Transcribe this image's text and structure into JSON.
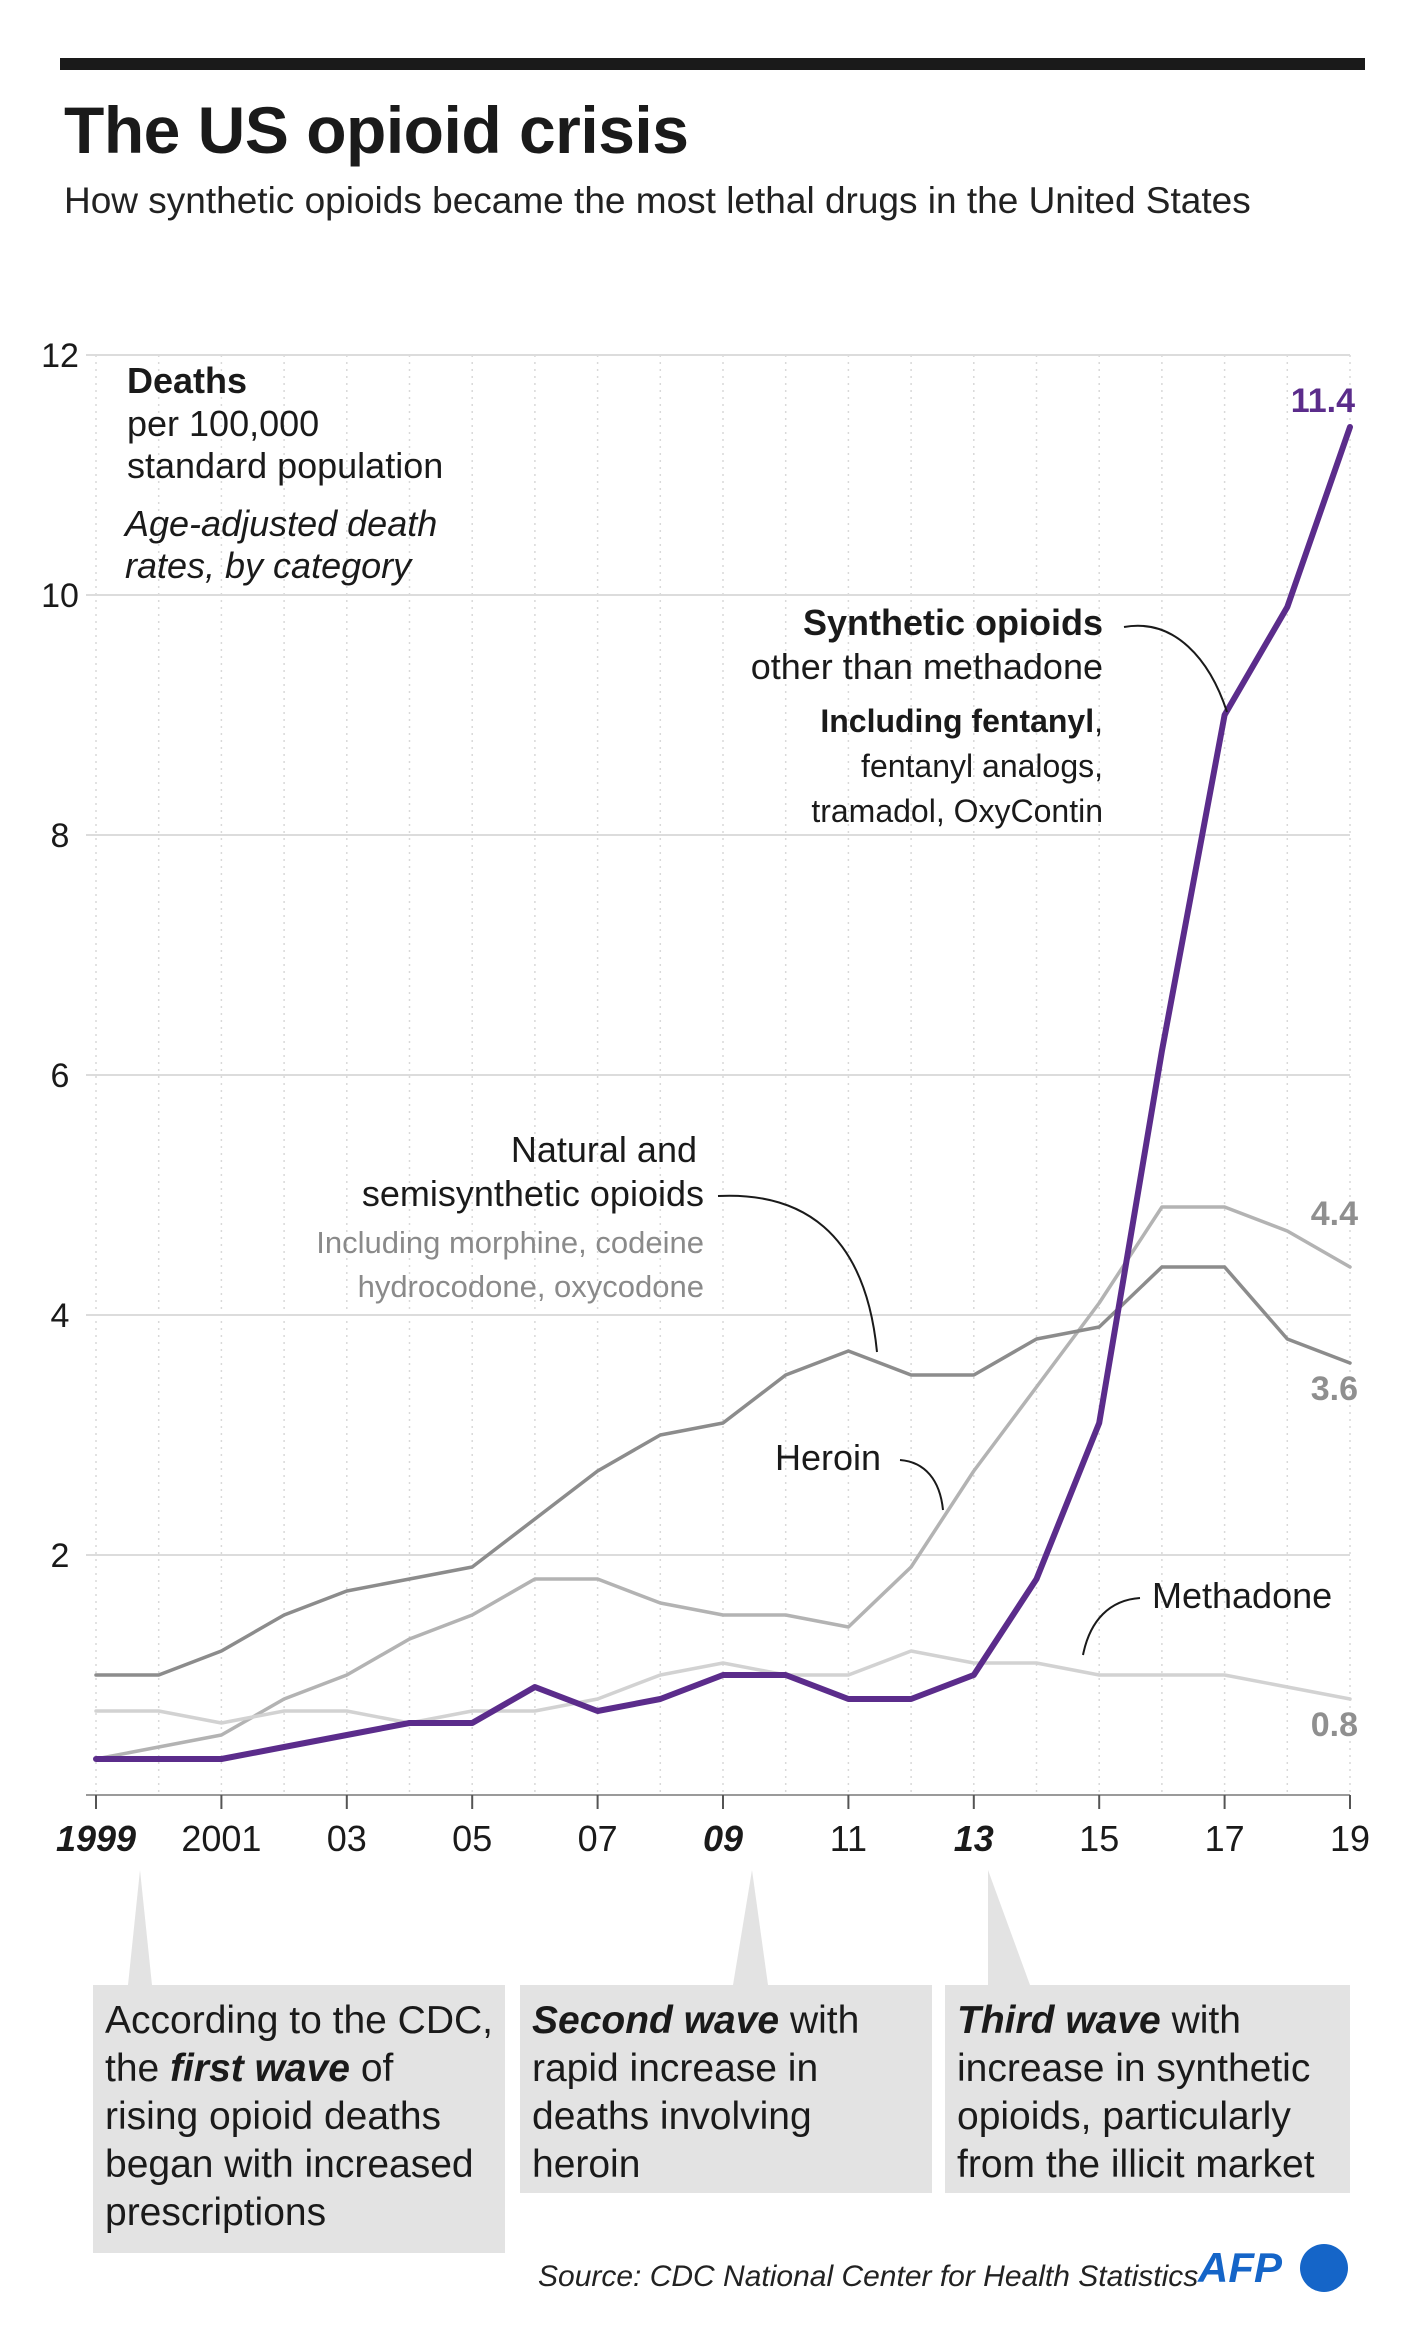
{
  "header": {
    "title": "The US opioid crisis",
    "subtitle": "How synthetic opioids became the most lethal drugs in the United States"
  },
  "chart_data": {
    "type": "line",
    "title": "The US opioid crisis",
    "x": [
      1999,
      2000,
      2001,
      2002,
      2003,
      2004,
      2005,
      2006,
      2007,
      2008,
      2009,
      2010,
      2011,
      2012,
      2013,
      2014,
      2015,
      2016,
      2017,
      2018,
      2019
    ],
    "xlim": [
      1999,
      2019
    ],
    "ylim": [
      0,
      12
    ],
    "yticks": [
      2,
      4,
      6,
      8,
      10,
      12
    ],
    "xtick_values": [
      1999,
      2001,
      2003,
      2005,
      2007,
      2009,
      2011,
      2013,
      2015,
      2017,
      2019
    ],
    "xtick_labels": [
      "1999",
      "2001",
      "03",
      "05",
      "07",
      "09",
      "11",
      "13",
      "15",
      "17",
      "19"
    ],
    "xtick_emphasis": [
      "1999",
      "09",
      "13"
    ],
    "grid": true,
    "ylabel_lines": [
      "Deaths",
      "per 100,000",
      "standard population"
    ],
    "ylabel_note": [
      "Age-adjusted death",
      "rates, by category"
    ],
    "series": [
      {
        "name": "Heroin",
        "color": "#b3b3b3",
        "values": [
          0.3,
          0.4,
          0.5,
          0.8,
          1.0,
          1.3,
          1.5,
          1.8,
          1.8,
          1.6,
          1.5,
          1.5,
          1.4,
          1.9,
          2.7,
          3.4,
          4.1,
          4.9,
          4.9,
          4.7,
          4.4
        ]
      },
      {
        "name": "Methadone",
        "color": "#d2d2d2",
        "values": [
          0.7,
          0.7,
          0.6,
          0.7,
          0.7,
          0.6,
          0.7,
          0.7,
          0.8,
          1.0,
          1.1,
          1.0,
          1.0,
          1.2,
          1.1,
          1.1,
          1.0,
          1.0,
          1.0,
          0.9,
          0.8
        ]
      },
      {
        "name": "Natural and semisynthetic opioids",
        "color": "#8c8c8c",
        "values": [
          1.0,
          1.0,
          1.2,
          1.5,
          1.7,
          1.8,
          1.9,
          2.3,
          2.7,
          3.0,
          3.1,
          3.5,
          3.7,
          3.5,
          3.5,
          3.8,
          3.9,
          4.4,
          4.4,
          3.8,
          3.6
        ]
      },
      {
        "name": "Synthetic opioids other than methadone",
        "color": "#5b2c8b",
        "values": [
          0.3,
          0.3,
          0.3,
          0.4,
          0.5,
          0.6,
          0.6,
          0.9,
          0.7,
          0.8,
          1.0,
          1.0,
          0.8,
          0.8,
          1.0,
          1.8,
          3.1,
          6.2,
          9.0,
          9.9,
          11.4
        ]
      }
    ],
    "end_labels": {
      "synthetic": "11.4",
      "heroin": "4.4",
      "natural": "3.6",
      "methadone": "0.8"
    },
    "annotations": {
      "synthetic_title": "Synthetic opioids",
      "synthetic_sub": "other than methadone",
      "synthetic_incl_bold": "Including fentanyl",
      "synthetic_incl_comma": ",",
      "synthetic_incl_2": "fentanyl analogs,",
      "synthetic_incl_3": "tramadol, OxyContin",
      "natural_1": "Natural and",
      "natural_2": "semisynthetic opioids",
      "natural_incl_1": "Including morphine, codeine",
      "natural_incl_2": "hydrocodone, oxycodone",
      "heroin": "Heroin",
      "methadone": "Methadone"
    }
  },
  "waves": {
    "first": {
      "pre": "According to the CDC, the ",
      "em": "first wave",
      "post": " of rising opioid deaths began with increased prescriptions"
    },
    "second": {
      "em": "Second wave",
      "post": " with rapid increase in deaths involving heroin"
    },
    "third": {
      "em": "Third wave",
      "post": " with increase in synthetic opioids, particularly from the illicit market"
    }
  },
  "footer": {
    "source": "Source: CDC National Center for Health Statistics",
    "logo": "AFP"
  },
  "colors": {
    "synthetic": "#5b2c8b",
    "afp_blue": "#1565c8"
  }
}
